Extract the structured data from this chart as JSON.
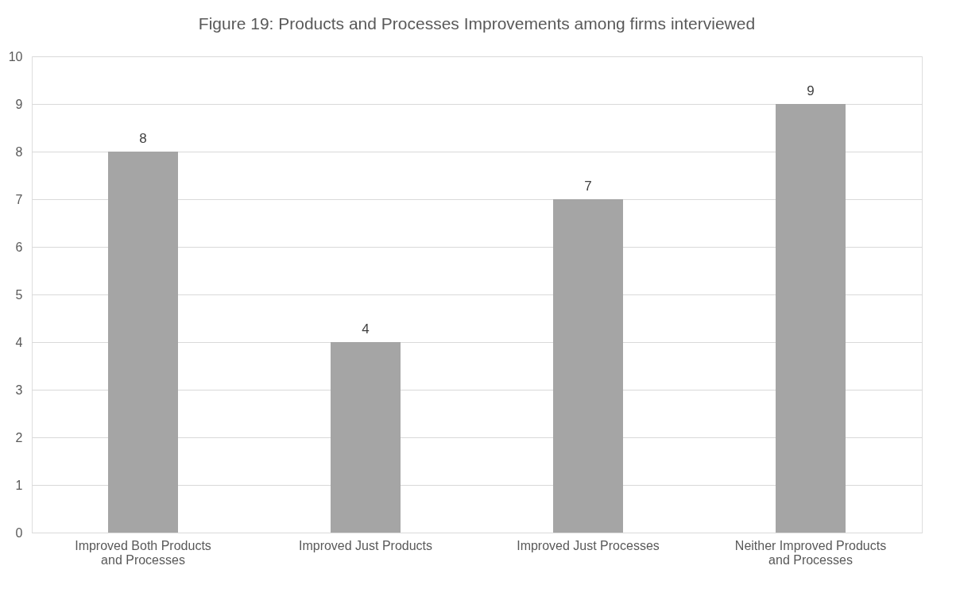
{
  "chart_data": {
    "type": "bar",
    "title": "Figure 19: Products and Processes Improvements among firms interviewed",
    "categories": [
      "Improved Both Products and Processes",
      "Improved Just Products",
      "Improved Just Processes",
      "Neither Improved Products and Processes"
    ],
    "values": [
      8,
      4,
      7,
      9
    ],
    "color": "#a5a5a5",
    "ylim": [
      0,
      10
    ],
    "yticks": [
      0,
      1,
      2,
      3,
      4,
      5,
      6,
      7,
      8,
      9,
      10
    ],
    "grid": "y",
    "data_labels": true
  }
}
